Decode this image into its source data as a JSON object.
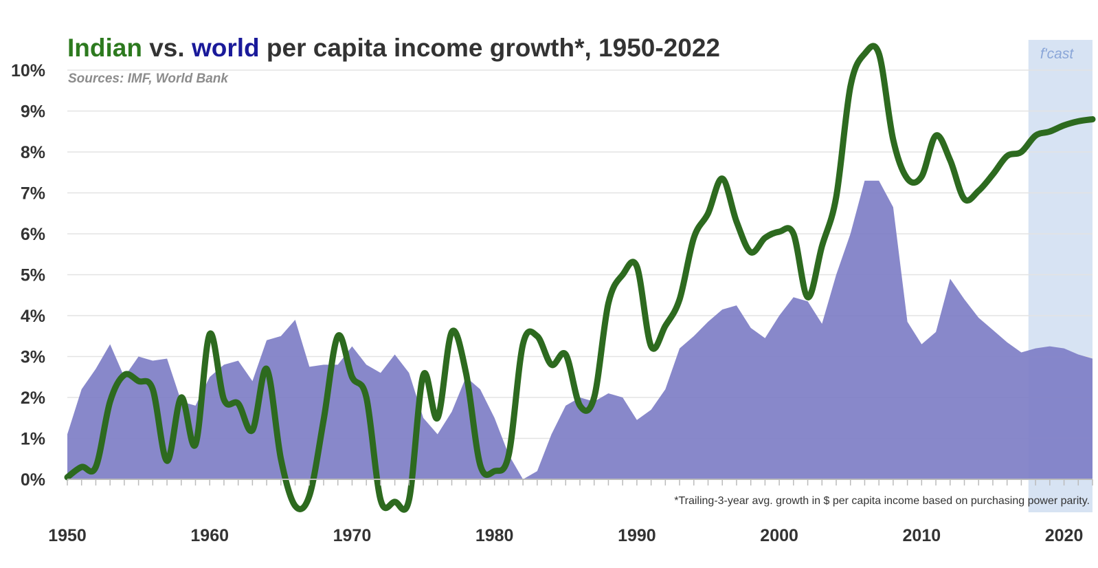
{
  "chart_data": {
    "type": "area",
    "title_parts": [
      {
        "text": "Indian",
        "color": "#2d7a1f"
      },
      {
        "text": " vs. ",
        "color": "#333333"
      },
      {
        "text": "world",
        "color": "#1a1a9a"
      },
      {
        "text": " per capita income growth*, 1950-2022",
        "color": "#333333"
      }
    ],
    "subtitle": "Sources: IMF, World Bank",
    "footnote": "*Trailing-3-year  avg. growth in $ per capita  income  based on purchasing  power parity.",
    "forecast_label": "f'cast",
    "forecast_start": 2017.5,
    "xlim": [
      1950,
      2022
    ],
    "ylim": [
      -0.9,
      10.5
    ],
    "yticks": [
      {
        "value": 0,
        "label": "0%"
      },
      {
        "value": 1,
        "label": "1%"
      },
      {
        "value": 2,
        "label": "2%"
      },
      {
        "value": 3,
        "label": "3%"
      },
      {
        "value": 4,
        "label": "4%"
      },
      {
        "value": 5,
        "label": "5%"
      },
      {
        "value": 6,
        "label": "6%"
      },
      {
        "value": 7,
        "label": "7%"
      },
      {
        "value": 8,
        "label": "8%"
      },
      {
        "value": 9,
        "label": "9%"
      },
      {
        "value": 10,
        "label": "10%"
      }
    ],
    "xticks": [
      {
        "value": 1950,
        "label": "1950"
      },
      {
        "value": 1960,
        "label": "1960"
      },
      {
        "value": 1970,
        "label": "1970"
      },
      {
        "value": 1980,
        "label": "1980"
      },
      {
        "value": 1990,
        "label": "1990"
      },
      {
        "value": 2000,
        "label": "2000"
      },
      {
        "value": 2010,
        "label": "2010"
      },
      {
        "value": 2020,
        "label": "2020"
      }
    ],
    "grid": true,
    "colors": {
      "india_line": "#2d6a1f",
      "world_area": "#7f7fc6",
      "forecast_band": "#d7e3f3",
      "forecast_text": "#8aa6d8",
      "grid": "#e3e3e3",
      "axis": "#bbbbbb"
    },
    "series": [
      {
        "name": "world",
        "type": "area",
        "x": [
          1950,
          1951,
          1952,
          1953,
          1954,
          1955,
          1956,
          1957,
          1958,
          1959,
          1960,
          1961,
          1962,
          1963,
          1964,
          1965,
          1966,
          1967,
          1968,
          1969,
          1970,
          1971,
          1972,
          1973,
          1974,
          1975,
          1976,
          1977,
          1978,
          1979,
          1980,
          1981,
          1982,
          1983,
          1984,
          1985,
          1986,
          1987,
          1988,
          1989,
          1990,
          1991,
          1992,
          1993,
          1994,
          1995,
          1996,
          1997,
          1998,
          1999,
          2000,
          2001,
          2002,
          2003,
          2004,
          2005,
          2006,
          2007,
          2008,
          2009,
          2010,
          2011,
          2012,
          2013,
          2014,
          2015,
          2016,
          2017,
          2018,
          2019,
          2020,
          2021,
          2022
        ],
        "y": [
          1.1,
          2.2,
          2.7,
          3.3,
          2.5,
          3.0,
          2.9,
          2.95,
          1.9,
          1.8,
          2.5,
          2.8,
          2.9,
          2.4,
          3.4,
          3.5,
          3.9,
          2.75,
          2.8,
          2.8,
          3.25,
          2.8,
          2.6,
          3.05,
          2.6,
          1.5,
          1.1,
          1.65,
          2.5,
          2.2,
          1.5,
          0.6,
          0.0,
          0.2,
          1.1,
          1.8,
          2.0,
          1.9,
          2.1,
          2.0,
          1.45,
          1.7,
          2.2,
          3.2,
          3.5,
          3.85,
          4.15,
          4.25,
          3.7,
          3.45,
          4.0,
          4.45,
          4.35,
          3.8,
          5.0,
          6.0,
          7.3,
          7.3,
          6.65,
          3.85,
          3.3,
          3.6,
          4.9,
          4.4,
          3.95,
          3.65,
          3.35,
          3.1,
          3.2,
          3.25,
          3.2,
          3.05,
          2.95
        ]
      },
      {
        "name": "Indian",
        "type": "line",
        "x": [
          1950,
          1951,
          1952,
          1953,
          1954,
          1955,
          1956,
          1957,
          1958,
          1959,
          1960,
          1961,
          1962,
          1963,
          1964,
          1965,
          1966,
          1967,
          1968,
          1969,
          1970,
          1971,
          1972,
          1973,
          1974,
          1975,
          1976,
          1977,
          1978,
          1979,
          1980,
          1981,
          1982,
          1983,
          1984,
          1985,
          1986,
          1987,
          1988,
          1989,
          1990,
          1991,
          1992,
          1993,
          1994,
          1995,
          1996,
          1997,
          1998,
          1999,
          2000,
          2001,
          2002,
          2003,
          2004,
          2005,
          2006,
          2007,
          2008,
          2009,
          2010,
          2011,
          2012,
          2013,
          2014,
          2015,
          2016,
          2017,
          2018,
          2019,
          2020,
          2021,
          2022
        ],
        "y": [
          0.05,
          0.3,
          0.3,
          1.9,
          2.55,
          2.4,
          2.2,
          0.45,
          2.0,
          0.85,
          3.55,
          1.95,
          1.85,
          1.2,
          2.7,
          0.5,
          -0.65,
          -0.4,
          1.45,
          3.5,
          2.5,
          2.0,
          -0.5,
          -0.55,
          -0.5,
          2.55,
          1.5,
          3.6,
          2.6,
          0.35,
          0.2,
          0.6,
          3.3,
          3.5,
          2.8,
          3.05,
          1.8,
          2.0,
          4.3,
          5.0,
          5.2,
          3.25,
          3.75,
          4.4,
          5.9,
          6.5,
          7.35,
          6.3,
          5.55,
          5.9,
          6.05,
          6.0,
          4.45,
          5.7,
          6.9,
          9.6,
          10.4,
          10.4,
          8.3,
          7.35,
          7.4,
          8.4,
          7.8,
          6.85,
          7.05,
          7.45,
          7.9,
          8.0,
          8.4,
          8.5,
          8.65,
          8.75,
          8.8
        ]
      }
    ]
  }
}
